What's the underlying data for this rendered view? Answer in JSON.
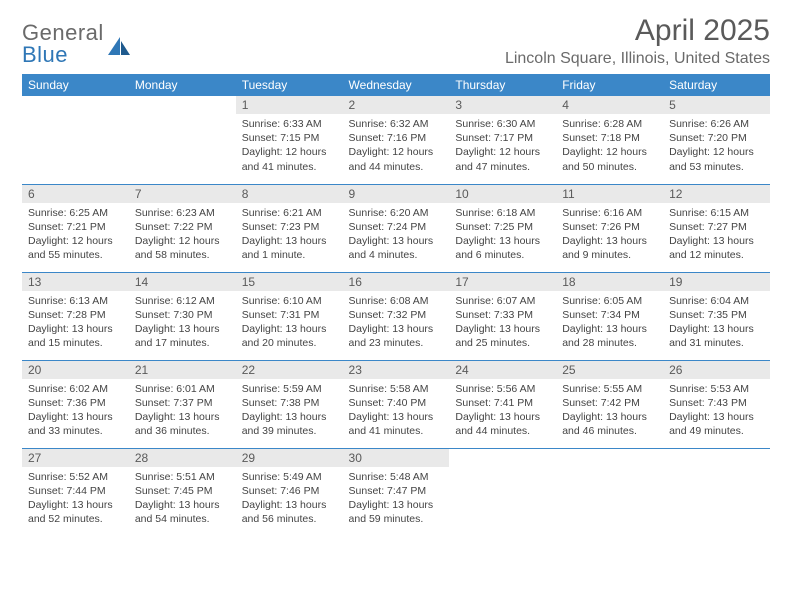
{
  "logo": {
    "text1": "General",
    "text2": "Blue"
  },
  "title": "April 2025",
  "location": "Lincoln Square, Illinois, United States",
  "colors": {
    "header_bg": "#3b87c8",
    "header_text": "#ffffff",
    "daynum_bg": "#e9e9e9",
    "text_gray": "#5a5a5a",
    "body_text": "#444444",
    "logo_gray": "#6a6a6a",
    "logo_blue": "#2f77b6"
  },
  "day_names": [
    "Sunday",
    "Monday",
    "Tuesday",
    "Wednesday",
    "Thursday",
    "Friday",
    "Saturday"
  ],
  "weeks": [
    [
      null,
      null,
      {
        "n": "1",
        "sr": "Sunrise: 6:33 AM",
        "ss": "Sunset: 7:15 PM",
        "dl": "Daylight: 12 hours and 41 minutes."
      },
      {
        "n": "2",
        "sr": "Sunrise: 6:32 AM",
        "ss": "Sunset: 7:16 PM",
        "dl": "Daylight: 12 hours and 44 minutes."
      },
      {
        "n": "3",
        "sr": "Sunrise: 6:30 AM",
        "ss": "Sunset: 7:17 PM",
        "dl": "Daylight: 12 hours and 47 minutes."
      },
      {
        "n": "4",
        "sr": "Sunrise: 6:28 AM",
        "ss": "Sunset: 7:18 PM",
        "dl": "Daylight: 12 hours and 50 minutes."
      },
      {
        "n": "5",
        "sr": "Sunrise: 6:26 AM",
        "ss": "Sunset: 7:20 PM",
        "dl": "Daylight: 12 hours and 53 minutes."
      }
    ],
    [
      {
        "n": "6",
        "sr": "Sunrise: 6:25 AM",
        "ss": "Sunset: 7:21 PM",
        "dl": "Daylight: 12 hours and 55 minutes."
      },
      {
        "n": "7",
        "sr": "Sunrise: 6:23 AM",
        "ss": "Sunset: 7:22 PM",
        "dl": "Daylight: 12 hours and 58 minutes."
      },
      {
        "n": "8",
        "sr": "Sunrise: 6:21 AM",
        "ss": "Sunset: 7:23 PM",
        "dl": "Daylight: 13 hours and 1 minute."
      },
      {
        "n": "9",
        "sr": "Sunrise: 6:20 AM",
        "ss": "Sunset: 7:24 PM",
        "dl": "Daylight: 13 hours and 4 minutes."
      },
      {
        "n": "10",
        "sr": "Sunrise: 6:18 AM",
        "ss": "Sunset: 7:25 PM",
        "dl": "Daylight: 13 hours and 6 minutes."
      },
      {
        "n": "11",
        "sr": "Sunrise: 6:16 AM",
        "ss": "Sunset: 7:26 PM",
        "dl": "Daylight: 13 hours and 9 minutes."
      },
      {
        "n": "12",
        "sr": "Sunrise: 6:15 AM",
        "ss": "Sunset: 7:27 PM",
        "dl": "Daylight: 13 hours and 12 minutes."
      }
    ],
    [
      {
        "n": "13",
        "sr": "Sunrise: 6:13 AM",
        "ss": "Sunset: 7:28 PM",
        "dl": "Daylight: 13 hours and 15 minutes."
      },
      {
        "n": "14",
        "sr": "Sunrise: 6:12 AM",
        "ss": "Sunset: 7:30 PM",
        "dl": "Daylight: 13 hours and 17 minutes."
      },
      {
        "n": "15",
        "sr": "Sunrise: 6:10 AM",
        "ss": "Sunset: 7:31 PM",
        "dl": "Daylight: 13 hours and 20 minutes."
      },
      {
        "n": "16",
        "sr": "Sunrise: 6:08 AM",
        "ss": "Sunset: 7:32 PM",
        "dl": "Daylight: 13 hours and 23 minutes."
      },
      {
        "n": "17",
        "sr": "Sunrise: 6:07 AM",
        "ss": "Sunset: 7:33 PM",
        "dl": "Daylight: 13 hours and 25 minutes."
      },
      {
        "n": "18",
        "sr": "Sunrise: 6:05 AM",
        "ss": "Sunset: 7:34 PM",
        "dl": "Daylight: 13 hours and 28 minutes."
      },
      {
        "n": "19",
        "sr": "Sunrise: 6:04 AM",
        "ss": "Sunset: 7:35 PM",
        "dl": "Daylight: 13 hours and 31 minutes."
      }
    ],
    [
      {
        "n": "20",
        "sr": "Sunrise: 6:02 AM",
        "ss": "Sunset: 7:36 PM",
        "dl": "Daylight: 13 hours and 33 minutes."
      },
      {
        "n": "21",
        "sr": "Sunrise: 6:01 AM",
        "ss": "Sunset: 7:37 PM",
        "dl": "Daylight: 13 hours and 36 minutes."
      },
      {
        "n": "22",
        "sr": "Sunrise: 5:59 AM",
        "ss": "Sunset: 7:38 PM",
        "dl": "Daylight: 13 hours and 39 minutes."
      },
      {
        "n": "23",
        "sr": "Sunrise: 5:58 AM",
        "ss": "Sunset: 7:40 PM",
        "dl": "Daylight: 13 hours and 41 minutes."
      },
      {
        "n": "24",
        "sr": "Sunrise: 5:56 AM",
        "ss": "Sunset: 7:41 PM",
        "dl": "Daylight: 13 hours and 44 minutes."
      },
      {
        "n": "25",
        "sr": "Sunrise: 5:55 AM",
        "ss": "Sunset: 7:42 PM",
        "dl": "Daylight: 13 hours and 46 minutes."
      },
      {
        "n": "26",
        "sr": "Sunrise: 5:53 AM",
        "ss": "Sunset: 7:43 PM",
        "dl": "Daylight: 13 hours and 49 minutes."
      }
    ],
    [
      {
        "n": "27",
        "sr": "Sunrise: 5:52 AM",
        "ss": "Sunset: 7:44 PM",
        "dl": "Daylight: 13 hours and 52 minutes."
      },
      {
        "n": "28",
        "sr": "Sunrise: 5:51 AM",
        "ss": "Sunset: 7:45 PM",
        "dl": "Daylight: 13 hours and 54 minutes."
      },
      {
        "n": "29",
        "sr": "Sunrise: 5:49 AM",
        "ss": "Sunset: 7:46 PM",
        "dl": "Daylight: 13 hours and 56 minutes."
      },
      {
        "n": "30",
        "sr": "Sunrise: 5:48 AM",
        "ss": "Sunset: 7:47 PM",
        "dl": "Daylight: 13 hours and 59 minutes."
      },
      null,
      null,
      null
    ]
  ]
}
